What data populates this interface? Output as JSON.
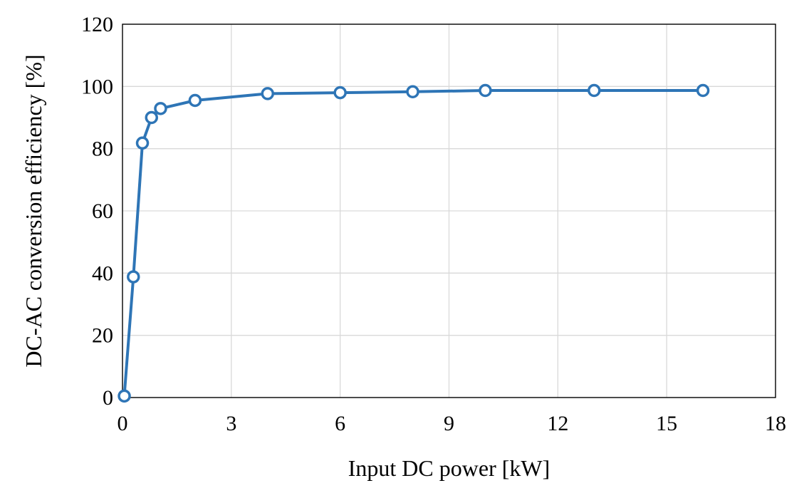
{
  "chart_data": {
    "type": "line",
    "title": "",
    "xlabel": "Input DC power [kW]",
    "ylabel": "DC-AC conversion efficiency [%]",
    "xlim": [
      0,
      18
    ],
    "ylim": [
      0,
      120
    ],
    "xticks": [
      0,
      3,
      6,
      9,
      12,
      15,
      18
    ],
    "yticks": [
      0,
      20,
      40,
      60,
      80,
      100,
      120
    ],
    "grid": true,
    "legend": "none",
    "series": [
      {
        "x": [
          0.05,
          0.3,
          0.55,
          0.8,
          1.05,
          2.0,
          4.0,
          6.0,
          8.0,
          10.0,
          13.0,
          16.0
        ],
        "y": [
          0.5,
          38.8,
          81.8,
          90.0,
          92.9,
          95.5,
          97.7,
          98.0,
          98.3,
          98.7,
          98.7,
          98.7
        ],
        "color": "#2e75b6",
        "marker": "open-circle"
      }
    ]
  }
}
